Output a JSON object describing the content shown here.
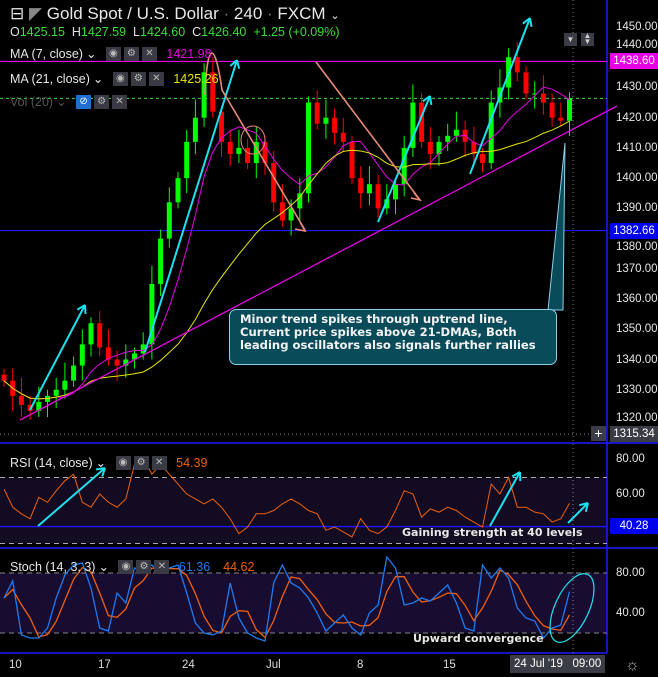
{
  "header": {
    "symbol": "Gold Spot / U.S. Dollar",
    "interval": "240",
    "exchange": "FXCM",
    "ohlc": {
      "o_label": "O",
      "o": "1425.15",
      "h_label": "H",
      "h": "1427.59",
      "l_label": "L",
      "l": "1424.60",
      "c_label": "C",
      "c": "1426.40",
      "change": "+1.25 (+0.09%)"
    }
  },
  "legends": {
    "ma7": {
      "label": "MA (7, close)",
      "value": "1421.98",
      "color": "#e600e6"
    },
    "ma21": {
      "label": "MA (21, close)",
      "value": "1425.26",
      "color": "#e6e600"
    },
    "vol": {
      "label": "Vol (20)"
    },
    "rsi": {
      "label": "RSI (14, close)",
      "value": "54.39",
      "color": "#f0600a"
    },
    "stoch": {
      "label": "Stoch (14, 3, 3)",
      "k": "61.36",
      "d": "44.62",
      "k_color": "#1e7bf0",
      "d_color": "#f0600a"
    }
  },
  "price_axis": {
    "ticks": [
      "1450.00",
      "1440.00",
      "1430.00",
      "1420.00",
      "1410.00",
      "1400.00",
      "1390.00",
      "1380.00",
      "1370.00",
      "1360.00",
      "1350.00",
      "1340.00",
      "1330.00",
      "1320.00"
    ],
    "tags": {
      "resistance": "1438.60",
      "support": "1382.66",
      "cursor": "1315.34"
    }
  },
  "rsi_axis": {
    "ticks": [
      "80.00",
      "60.00"
    ],
    "tag": "40.28"
  },
  "stoch_axis": {
    "ticks": [
      "80.00",
      "40.00"
    ]
  },
  "time_axis": {
    "ticks": [
      "10",
      "17",
      "24",
      "Jul",
      "8",
      "15"
    ],
    "cursor_date": "24 Jul '19",
    "cursor_time": "09:00"
  },
  "annotations": {
    "callout": "Minor trend spikes through uptrend line, Current price spikes above 21-DMAs, Both leading oscillators also signals further rallies",
    "rsi_note": "Gaining strength at 40 levels",
    "stoch_note": "Upward convergence"
  },
  "chart_data": {
    "type": "candlestick",
    "title": "Gold Spot / U.S. Dollar 240 FXCM",
    "ylim": [
      1315,
      1455
    ],
    "levels": {
      "resistance": 1438.6,
      "support": 1382.66,
      "last": 1426.4
    },
    "closes": [
      1333,
      1328,
      1325,
      1323,
      1326,
      1328,
      1330,
      1333,
      1338,
      1345,
      1352,
      1344,
      1340,
      1338,
      1340,
      1342,
      1345,
      1365,
      1380,
      1392,
      1400,
      1412,
      1420,
      1435,
      1422,
      1412,
      1408,
      1410,
      1405,
      1412,
      1405,
      1392,
      1386,
      1390,
      1395,
      1425,
      1418,
      1420,
      1415,
      1412,
      1400,
      1395,
      1398,
      1390,
      1393,
      1398,
      1410,
      1425,
      1412,
      1408,
      1412,
      1414,
      1416,
      1412,
      1408,
      1405,
      1425,
      1430,
      1440,
      1435,
      1428,
      1428,
      1425,
      1420,
      1419,
      1426.4
    ],
    "rsi": [
      63,
      52,
      48,
      45,
      58,
      55,
      62,
      68,
      72,
      55,
      52,
      60,
      55,
      52,
      57,
      78,
      82,
      72,
      78,
      72,
      66,
      60,
      57,
      54,
      57,
      52,
      45,
      36,
      40,
      48,
      48,
      50,
      54,
      57,
      54,
      50,
      48,
      38,
      40,
      37,
      34,
      45,
      38,
      36,
      40,
      50,
      62,
      60,
      46,
      51,
      49,
      52,
      50,
      46,
      43,
      40,
      66,
      60,
      70,
      52,
      52,
      49,
      48,
      43,
      45,
      54.39
    ],
    "rsi_levels": [
      70,
      40,
      30
    ],
    "stoch_k": [
      55,
      72,
      18,
      15,
      15,
      25,
      55,
      78,
      88,
      90,
      65,
      25,
      22,
      60,
      50,
      85,
      82,
      88,
      80,
      85,
      88,
      60,
      30,
      20,
      18,
      22,
      70,
      35,
      20,
      15,
      12,
      70,
      88,
      70,
      65,
      55,
      40,
      22,
      30,
      38,
      25,
      18,
      40,
      48,
      96,
      85,
      48,
      50,
      55,
      52,
      60,
      68,
      50,
      25,
      22,
      88,
      75,
      85,
      75,
      45,
      35,
      32,
      15,
      25,
      28,
      61.36
    ],
    "stoch_levels": [
      80,
      20
    ]
  }
}
